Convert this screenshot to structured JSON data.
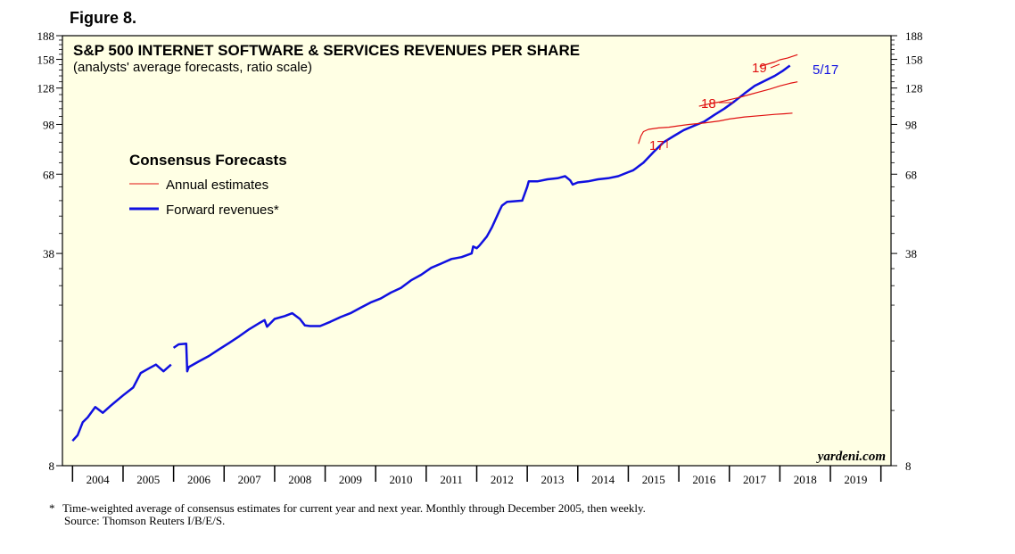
{
  "figure_label": "Figure 8.",
  "footnote_marker": "*",
  "footnote": "Time-weighted average of consensus estimates for current year and next year. Monthly through December 2005, then weekly.",
  "source": "Source: Thomson Reuters I/B/E/S.",
  "colors": {
    "plot_bg": "#ffffe4",
    "forward": "#1010e0",
    "annual": "#e01010",
    "text": "#000000"
  },
  "chart_data": {
    "type": "line",
    "title": "S&P 500 INTERNET SOFTWARE & SERVICES REVENUES PER SHARE",
    "subtitle": "(analysts' average forecasts, ratio scale)",
    "watermark": "yardeni.com",
    "y_scale": "log",
    "ylim": [
      8,
      188
    ],
    "xlim": [
      2003.8,
      2020.2
    ],
    "y_ticks": [
      188,
      158,
      128,
      98,
      68,
      38,
      8
    ],
    "x_tick_labels": [
      "2004",
      "2005",
      "2006",
      "2007",
      "2008",
      "2009",
      "2010",
      "2011",
      "2012",
      "2013",
      "2014",
      "2015",
      "2016",
      "2017",
      "2018",
      "2019"
    ],
    "legend": {
      "title": "Consensus Forecasts",
      "items": [
        "Annual estimates",
        "Forward revenues*"
      ]
    },
    "annotations": {
      "latest": "5/17",
      "label_17": "17",
      "label_18": "18",
      "label_19": "19"
    },
    "series": [
      {
        "name": "Forward revenues*",
        "color": "#1010e0",
        "x": [
          2004.0,
          2004.1,
          2004.2,
          2004.3,
          2004.45,
          2004.6,
          2004.75,
          2004.9,
          2005.0,
          2005.2,
          2005.35,
          2005.5,
          2005.65,
          2005.8,
          2005.95
        ],
        "values": [
          9.6,
          10.0,
          11.0,
          11.4,
          12.3,
          11.8,
          12.4,
          13.0,
          13.4,
          14.2,
          15.8,
          16.3,
          16.8,
          16.0,
          16.8
        ]
      },
      {
        "name": "Forward revenues*",
        "color": "#1010e0",
        "x": [
          2006.0,
          2006.1,
          2006.25,
          2006.27,
          2006.3,
          2006.5,
          2006.7,
          2006.9,
          2007.1,
          2007.3,
          2007.5,
          2007.7,
          2007.8,
          2007.85,
          2008.0,
          2008.2,
          2008.35,
          2008.5,
          2008.6,
          2008.7,
          2008.9,
          2009.1,
          2009.3,
          2009.5,
          2009.7,
          2009.9,
          2010.1,
          2010.3,
          2010.5,
          2010.7,
          2010.9,
          2011.1,
          2011.3,
          2011.5,
          2011.7,
          2011.9,
          2011.93,
          2012.0,
          2012.05,
          2012.2,
          2012.3,
          2012.45,
          2012.5,
          2012.6,
          2012.9,
          2013.0,
          2013.03,
          2013.2,
          2013.4,
          2013.6,
          2013.75,
          2013.85,
          2013.9,
          2014.0,
          2014.2,
          2014.4,
          2014.6,
          2014.8,
          2015.0,
          2015.1,
          2015.15,
          2015.2,
          2015.3,
          2015.5,
          2015.7,
          2015.9,
          2016.1,
          2016.3,
          2016.5,
          2016.7,
          2016.9,
          2017.1,
          2017.3,
          2017.5,
          2017.7,
          2017.9,
          2018.05,
          2018.15,
          2018.2
        ],
        "values": [
          19.0,
          19.5,
          19.6,
          16.0,
          16.5,
          17.2,
          17.9,
          18.8,
          19.7,
          20.7,
          21.8,
          22.8,
          23.3,
          22.2,
          23.5,
          24.0,
          24.5,
          23.5,
          22.4,
          22.3,
          22.3,
          23.0,
          23.8,
          24.5,
          25.5,
          26.5,
          27.3,
          28.5,
          29.5,
          31.2,
          32.5,
          34.2,
          35.3,
          36.5,
          37.0,
          38.0,
          40.0,
          39.5,
          40.2,
          43.0,
          46.0,
          52.0,
          54.0,
          55.5,
          56.0,
          62.0,
          64.5,
          64.5,
          65.5,
          66.0,
          67.0,
          65.0,
          63.0,
          64.0,
          64.5,
          65.5,
          66.0,
          67.0,
          69.0,
          70.0,
          71.0,
          72.0,
          74.0,
          80.0,
          86.0,
          90.0,
          94.0,
          97.0,
          100.0,
          105.0,
          110.0,
          116.0,
          123.0,
          130.0,
          135.0,
          140.0,
          145.0,
          149.0,
          151.0
        ]
      },
      {
        "name": "Annual estimates 17",
        "color": "#e01010",
        "x": [
          2015.2,
          2015.25,
          2015.3,
          2015.4,
          2015.6,
          2015.8,
          2016.0,
          2016.2,
          2016.5,
          2016.8,
          2017.0,
          2017.3,
          2017.6,
          2017.9,
          2018.1,
          2018.25
        ],
        "values": [
          85.0,
          90.0,
          93.0,
          94.5,
          95.5,
          96.0,
          97.0,
          98.0,
          99.0,
          100.5,
          102.0,
          103.5,
          104.5,
          105.5,
          106.0,
          106.5
        ]
      },
      {
        "name": "Annual estimates 18",
        "color": "#e01010",
        "x": [
          2016.4,
          2016.6,
          2016.8,
          2017.0,
          2017.2,
          2017.4,
          2017.6,
          2017.8,
          2018.0,
          2018.2,
          2018.35
        ],
        "values": [
          112.0,
          114.0,
          115.5,
          117.5,
          119.5,
          122.0,
          124.5,
          127.0,
          130.0,
          132.5,
          134.0
        ]
      },
      {
        "name": "Annual estimates 19",
        "color": "#e01010",
        "x": [
          2017.6,
          2017.75,
          2017.9,
          2018.0,
          2018.15,
          2018.25,
          2018.35
        ],
        "values": [
          150.0,
          152.5,
          155.0,
          157.5,
          159.5,
          161.5,
          163.5
        ]
      }
    ]
  }
}
